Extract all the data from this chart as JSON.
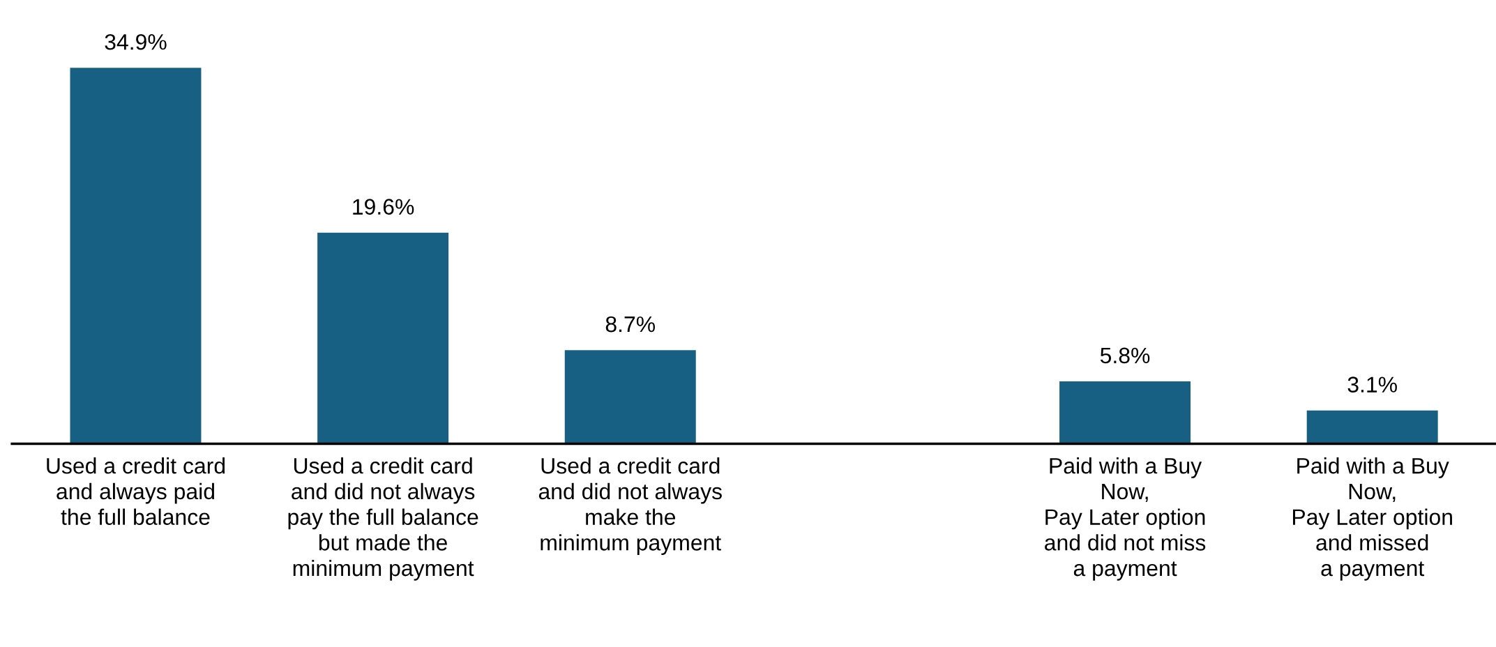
{
  "chart_data": {
    "type": "bar",
    "categories": [
      "Used a credit card\nand always paid\nthe full balance",
      "Used a credit card\nand did not always\npay the full balance\nbut made the\nminimum payment",
      "Used a credit card\nand did not always\nmake the\nminimum payment",
      null,
      "Paid with a Buy\nNow,\nPay Later option\nand did not miss\na payment",
      "Paid with a Buy\nNow,\nPay Later option\nand missed\na payment"
    ],
    "values": [
      34.9,
      19.6,
      8.7,
      null,
      5.8,
      3.1
    ],
    "value_labels": [
      "34.9%",
      "19.6%",
      "8.7%",
      null,
      "5.8%",
      "3.1%"
    ],
    "color": "#176083",
    "grid": false,
    "legend": false
  }
}
